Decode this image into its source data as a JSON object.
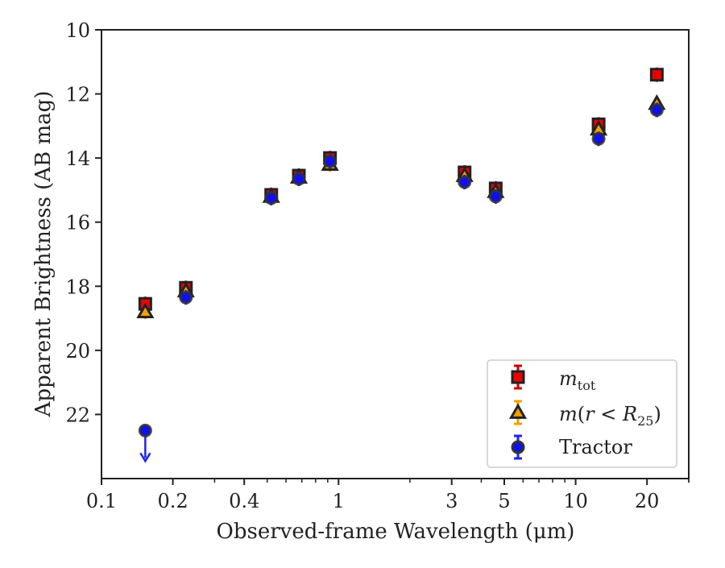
{
  "chart_data": {
    "type": "scatter",
    "title": "",
    "xlabel": "Observed-frame Wavelength (μm)",
    "ylabel": "Apparent Brightness (AB mag)",
    "x_scale": "log",
    "xlim": [
      0.1,
      30
    ],
    "ylim": [
      24,
      10
    ],
    "y_inverted": true,
    "grid": false,
    "legend_position": "lower right",
    "x_ticks": [
      {
        "value": 0.1,
        "label": "0.1"
      },
      {
        "value": 0.2,
        "label": "0.2"
      },
      {
        "value": 0.4,
        "label": "0.4"
      },
      {
        "value": 1,
        "label": "1"
      },
      {
        "value": 3,
        "label": "3"
      },
      {
        "value": 5,
        "label": "5"
      },
      {
        "value": 10,
        "label": "10"
      },
      {
        "value": 20,
        "label": "20"
      }
    ],
    "y_ticks": [
      {
        "value": 10,
        "label": "10"
      },
      {
        "value": 12,
        "label": "12"
      },
      {
        "value": 14,
        "label": "14"
      },
      {
        "value": 16,
        "label": "16"
      },
      {
        "value": 18,
        "label": "18"
      },
      {
        "value": 20,
        "label": "20"
      },
      {
        "value": 22,
        "label": "22"
      }
    ],
    "series": [
      {
        "key": "m_tot",
        "marker": "square",
        "color": "#ee0000",
        "edge_color": "#222222",
        "errorbar_color": "#cc0000",
        "x": [
          0.153,
          0.227,
          0.52,
          0.68,
          0.92,
          3.4,
          4.6,
          12.5,
          22.0
        ],
        "y": [
          18.55,
          18.05,
          15.15,
          14.55,
          14.0,
          14.45,
          14.95,
          12.95,
          11.4
        ]
      },
      {
        "key": "m_r_R25",
        "marker": "triangle",
        "color": "#f0a000",
        "edge_color": "#222222",
        "errorbar_color": "#f0a000",
        "x": [
          0.153,
          0.227,
          0.52,
          0.68,
          0.92,
          3.4,
          4.6,
          12.5,
          22.0
        ],
        "y": [
          18.8,
          18.15,
          15.2,
          14.6,
          14.2,
          14.55,
          15.05,
          13.1,
          12.3
        ]
      },
      {
        "key": "tractor",
        "name": "Tractor",
        "marker": "circle",
        "color": "#1010ee",
        "edge_color": "#333333",
        "errorbar_color": "#2222ee",
        "x": [
          0.227,
          0.52,
          0.68,
          0.92,
          3.4,
          4.6,
          12.5,
          22.0
        ],
        "y": [
          18.35,
          15.25,
          14.65,
          14.1,
          14.75,
          15.2,
          13.4,
          12.5
        ]
      },
      {
        "key": "tractor_upper_limit",
        "marker": "circle-upper-limit",
        "color": "#1010ee",
        "edge_color": "#333333",
        "errorbar_color": "#2222ee",
        "x": [
          0.153
        ],
        "y": [
          22.5
        ]
      }
    ]
  }
}
